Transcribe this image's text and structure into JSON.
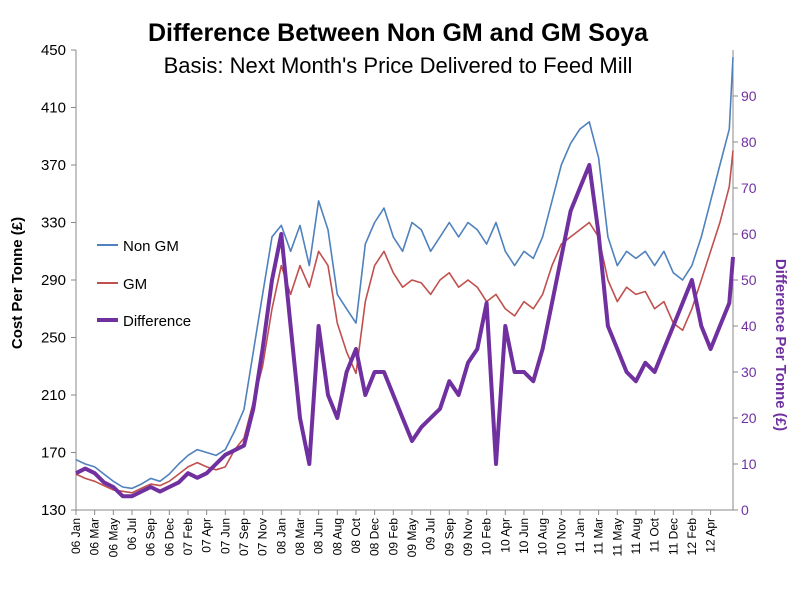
{
  "chart_data": {
    "type": "line",
    "title": "Difference Between Non GM and GM Soya",
    "subtitle": "Basis: Next Month's Price Delivered to Feed Mill",
    "ylabel": "Cost Per Tonne (£)",
    "y2label": "Difference Per Tonne (£)",
    "ylim": [
      130,
      450
    ],
    "yticks": [
      130,
      170,
      210,
      250,
      290,
      330,
      370,
      410,
      450
    ],
    "y2lim": [
      0,
      100
    ],
    "y2ticks": [
      0,
      10,
      20,
      30,
      40,
      50,
      60,
      70,
      80,
      90
    ],
    "x_ticks": [
      "06 Jan",
      "06 Mar",
      "06 May",
      "06 Jul",
      "06 Sep",
      "06 Dec",
      "07 Feb",
      "07 Apr",
      "07 Jun",
      "07 Sep",
      "07 Nov",
      "08 Jan",
      "08 Mar",
      "08 Jun",
      "08 Aug",
      "08 Oct",
      "08 Dec",
      "09 Feb",
      "09 May",
      "09 Jul",
      "09 Sep",
      "09 Nov",
      "10 Feb",
      "10 Apr",
      "10 Jun",
      "10 Aug",
      "10 Nov",
      "11 Jan",
      "11 Mar",
      "11 May",
      "11 Aug",
      "11 Oct",
      "11 Dec",
      "12 Feb",
      "12 Apr"
    ],
    "x_tick_positions": [
      0,
      1,
      2,
      3,
      4,
      5,
      6,
      7,
      8,
      9,
      10,
      11,
      12,
      13,
      14,
      15,
      16,
      17,
      18,
      19,
      20,
      21,
      22,
      23,
      24,
      25,
      26,
      27,
      28,
      29,
      30,
      31,
      32,
      33,
      34
    ],
    "x_range": [
      0,
      35.2
    ],
    "grid": false,
    "legend_position": "middle-left",
    "series": [
      {
        "name": "Non GM",
        "axis": "left",
        "color": "#4f81bd",
        "x": [
          0,
          0.5,
          1,
          1.5,
          2,
          2.5,
          3,
          3.5,
          4,
          4.5,
          5,
          5.5,
          6,
          6.5,
          7,
          7.5,
          8,
          8.5,
          9,
          9.5,
          10,
          10.5,
          11,
          11.5,
          12,
          12.5,
          13,
          13.5,
          14,
          14.5,
          15,
          15.5,
          16,
          16.5,
          17,
          17.5,
          18,
          18.5,
          19,
          19.5,
          20,
          20.5,
          21,
          21.5,
          22,
          22.5,
          23,
          23.5,
          24,
          24.5,
          25,
          25.5,
          26,
          26.5,
          27,
          27.5,
          28,
          28.5,
          29,
          29.5,
          30,
          30.5,
          31,
          31.5,
          32,
          32.5,
          33,
          33.5,
          34,
          34.5,
          35,
          35.2
        ],
        "values": [
          165,
          162,
          160,
          155,
          150,
          146,
          145,
          148,
          152,
          150,
          155,
          162,
          168,
          172,
          170,
          168,
          172,
          185,
          200,
          240,
          280,
          320,
          328,
          310,
          328,
          300,
          345,
          325,
          280,
          270,
          260,
          315,
          330,
          340,
          320,
          310,
          330,
          325,
          310,
          320,
          330,
          320,
          330,
          325,
          315,
          330,
          310,
          300,
          310,
          305,
          320,
          345,
          370,
          385,
          395,
          400,
          375,
          320,
          300,
          310,
          305,
          310,
          300,
          310,
          295,
          290,
          300,
          320,
          345,
          370,
          395,
          445
        ]
      },
      {
        "name": "GM",
        "axis": "left",
        "color": "#c0504d",
        "x": [
          0,
          0.5,
          1,
          1.5,
          2,
          2.5,
          3,
          3.5,
          4,
          4.5,
          5,
          5.5,
          6,
          6.5,
          7,
          7.5,
          8,
          8.5,
          9,
          9.5,
          10,
          10.5,
          11,
          11.5,
          12,
          12.5,
          13,
          13.5,
          14,
          14.5,
          15,
          15.5,
          16,
          16.5,
          17,
          17.5,
          18,
          18.5,
          19,
          19.5,
          20,
          20.5,
          21,
          21.5,
          22,
          22.5,
          23,
          23.5,
          24,
          24.5,
          25,
          25.5,
          26,
          26.5,
          27,
          27.5,
          28,
          28.5,
          29,
          29.5,
          30,
          30.5,
          31,
          31.5,
          32,
          32.5,
          33,
          33.5,
          34,
          34.5,
          35,
          35.2
        ],
        "values": [
          155,
          152,
          150,
          147,
          144,
          143,
          142,
          145,
          148,
          147,
          150,
          155,
          160,
          163,
          160,
          158,
          160,
          172,
          180,
          205,
          230,
          270,
          300,
          280,
          300,
          285,
          310,
          300,
          260,
          240,
          225,
          275,
          300,
          310,
          295,
          285,
          290,
          288,
          280,
          290,
          295,
          285,
          290,
          285,
          275,
          280,
          270,
          265,
          275,
          270,
          280,
          300,
          315,
          320,
          325,
          330,
          320,
          290,
          275,
          285,
          280,
          282,
          270,
          275,
          260,
          255,
          270,
          290,
          310,
          330,
          355,
          380
        ]
      },
      {
        "name": "Difference",
        "axis": "right",
        "color": "#7030a0",
        "x": [
          0,
          0.5,
          1,
          1.5,
          2,
          2.5,
          3,
          3.5,
          4,
          4.5,
          5,
          5.5,
          6,
          6.5,
          7,
          7.5,
          8,
          8.5,
          9,
          9.5,
          10,
          10.5,
          11,
          11.5,
          12,
          12.5,
          13,
          13.5,
          14,
          14.5,
          15,
          15.5,
          16,
          16.5,
          17,
          17.5,
          18,
          18.5,
          19,
          19.5,
          20,
          20.5,
          21,
          21.5,
          22,
          22.5,
          23,
          23.5,
          24,
          24.5,
          25,
          25.5,
          26,
          26.5,
          27,
          27.5,
          28,
          28.5,
          29,
          29.5,
          30,
          30.5,
          31,
          31.5,
          32,
          32.5,
          33,
          33.5,
          34,
          34.5,
          35,
          35.2
        ],
        "values": [
          8,
          9,
          8,
          6,
          5,
          3,
          3,
          4,
          5,
          4,
          5,
          6,
          8,
          7,
          8,
          10,
          12,
          13,
          14,
          22,
          35,
          50,
          60,
          40,
          20,
          10,
          40,
          25,
          20,
          30,
          35,
          25,
          30,
          30,
          25,
          20,
          15,
          18,
          20,
          22,
          28,
          25,
          32,
          35,
          45,
          10,
          40,
          30,
          30,
          28,
          35,
          45,
          55,
          65,
          70,
          75,
          60,
          40,
          35,
          30,
          28,
          32,
          30,
          35,
          40,
          45,
          50,
          40,
          35,
          40,
          45,
          55
        ]
      }
    ]
  }
}
